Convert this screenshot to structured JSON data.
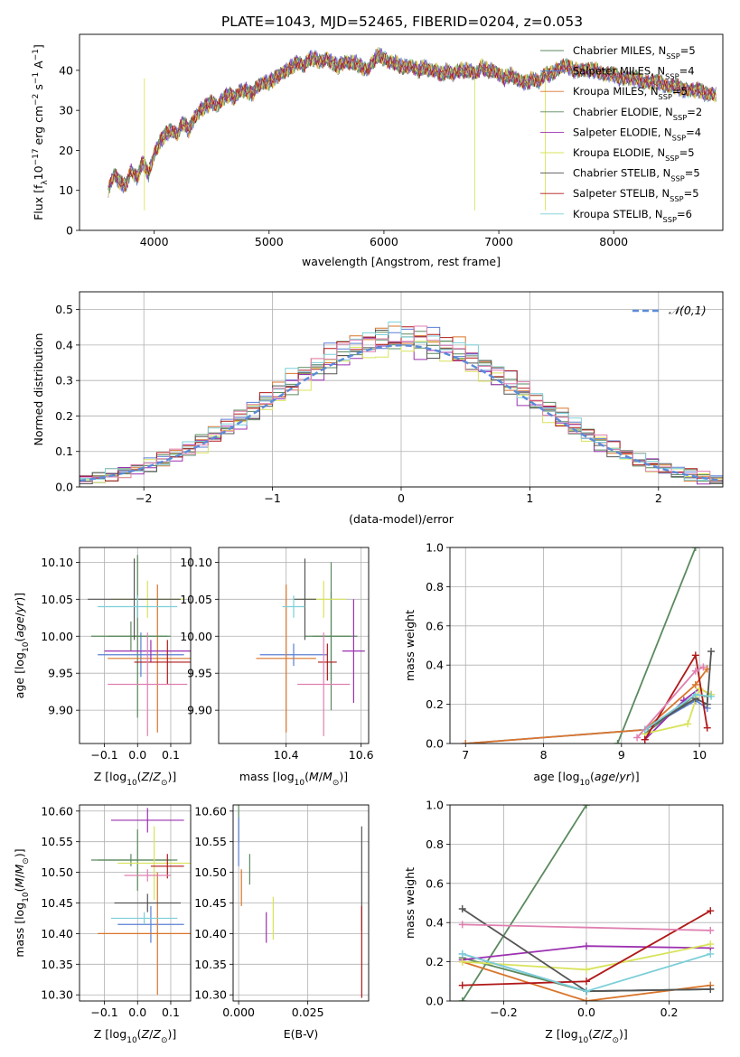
{
  "figure_title": "PLATE=1043, MJD=52465, FIBERID=0204, z=0.053",
  "colors": {
    "grid": "#b0b0b0",
    "series": [
      "#5b8a5f",
      "#5b7fd4",
      "#d9752b",
      "#5b8a5f",
      "#9b30b0",
      "#d8e35a",
      "#555555",
      "#b01818",
      "#7ccfd8",
      "#e07fb0"
    ]
  },
  "chart_data": [
    {
      "type": "line",
      "title": "PLATE=1043, MJD=52465, FIBERID=0204, z=0.053",
      "xlabel": "wavelength [Angstrom, rest frame]",
      "ylabel": "Flux [f_λ10^-17 erg cm^-2 s^-1 A^-1]",
      "xlim": [
        3350,
        8950
      ],
      "ylim": [
        0,
        49
      ],
      "xticks": [
        4000,
        5000,
        6000,
        7000,
        8000
      ],
      "yticks": [
        0,
        10,
        20,
        30,
        40
      ],
      "grid": false,
      "legend_position": "top-right",
      "spectrum_x": [
        3600,
        3650,
        3700,
        3750,
        3800,
        3850,
        3900,
        3950,
        4000,
        4050,
        4100,
        4150,
        4200,
        4250,
        4300,
        4350,
        4400,
        4450,
        4500,
        4550,
        4600,
        4650,
        4700,
        4750,
        4800,
        4850,
        4900,
        4950,
        5000,
        5050,
        5100,
        5150,
        5200,
        5250,
        5300,
        5350,
        5400,
        5450,
        5500,
        5550,
        5600,
        5650,
        5700,
        5750,
        5800,
        5850,
        5900,
        5950,
        6000,
        6050,
        6100,
        6150,
        6200,
        6250,
        6300,
        6350,
        6400,
        6450,
        6500,
        6550,
        6600,
        6650,
        6700,
        6750,
        6800,
        6850,
        6900,
        6950,
        7000,
        7050,
        7100,
        7150,
        7200,
        7250,
        7300,
        7350,
        7400,
        7450,
        7500,
        7550,
        7600,
        7650,
        7700,
        7750,
        7800,
        7850,
        7900,
        7950,
        8000,
        8050,
        8100,
        8150,
        8200,
        8250,
        8300,
        8350,
        8400,
        8450,
        8500,
        8550,
        8600,
        8650,
        8700,
        8750,
        8800,
        8850,
        8900
      ],
      "spectrum_y": [
        10,
        14,
        12,
        11,
        15,
        13,
        17,
        14,
        19,
        22,
        24,
        25,
        24,
        27,
        25,
        28,
        30,
        31,
        32,
        31,
        33,
        34,
        33,
        35,
        35,
        34,
        36,
        37,
        37,
        38,
        39,
        40,
        41,
        42,
        41,
        43,
        43,
        42,
        43,
        42,
        41,
        42,
        42,
        42,
        41,
        40,
        42,
        44,
        43,
        42,
        42,
        41,
        41,
        41,
        40,
        41,
        40,
        40,
        39,
        40,
        39,
        40,
        40,
        40,
        39,
        41,
        40,
        40,
        39,
        38,
        39,
        38,
        37,
        37,
        38,
        37,
        39,
        39,
        40,
        41,
        41,
        40,
        40,
        40,
        40,
        40,
        39,
        39,
        39,
        38,
        38,
        38,
        38,
        37,
        37,
        37,
        37,
        36,
        36,
        36,
        35,
        35,
        35,
        35,
        34,
        34,
        34
      ],
      "series": [
        {
          "name": "Chabrier MILES, N_SSP=5"
        },
        {
          "name": "Salpeter MILES, N_SSP=4"
        },
        {
          "name": "Kroupa MILES, N_SSP=5"
        },
        {
          "name": "Chabrier ELODIE, N_SSP=2"
        },
        {
          "name": "Salpeter ELODIE, N_SSP=4"
        },
        {
          "name": "Kroupa ELODIE, N_SSP=5"
        },
        {
          "name": "Chabrier STELIB, N_SSP=5"
        },
        {
          "name": "Salpeter STELIB, N_SSP=5"
        },
        {
          "name": "Kroupa STELIB, N_SSP=6"
        }
      ]
    },
    {
      "type": "line",
      "xlabel": "(data-model)/error",
      "ylabel": "Normed distribution",
      "xlim": [
        -2.5,
        2.5
      ],
      "ylim": [
        0,
        0.55
      ],
      "xticks": [
        -2,
        -1,
        0,
        1,
        2
      ],
      "yticks": [
        0.0,
        0.1,
        0.2,
        0.3,
        0.4,
        0.5
      ],
      "grid": true,
      "legend_position": "top-right",
      "reference_curve": {
        "name": "𝒩(0,1)",
        "mean": 0,
        "std": 1
      },
      "bin_width": 0.1,
      "bins_start": -2.5
    },
    {
      "type": "scatter",
      "xlabel": "Z [log10(Z/Z⊙)]",
      "ylabel": "age  [log10(age/yr)]",
      "xlim": [
        -0.175,
        0.16
      ],
      "ylim": [
        9.855,
        10.12
      ],
      "xticks": [
        -0.1,
        0.0,
        0.1
      ],
      "yticks": [
        9.9,
        9.95,
        10.0,
        10.05,
        10.1
      ],
      "grid": true,
      "points": [
        {
          "x": 0.0,
          "y": 10.0,
          "xerr": 0.09,
          "yerr": 0.11
        },
        {
          "x": 0.01,
          "y": 9.975,
          "xerr": 0.13,
          "yerr": 0.03
        },
        {
          "x": 0.06,
          "y": 9.97,
          "xerr": 0.15,
          "yerr": 0.1
        },
        {
          "x": -0.02,
          "y": 10.0,
          "xerr": 0.12,
          "yerr": 0.02
        },
        {
          "x": 0.04,
          "y": 9.98,
          "xerr": 0.14,
          "yerr": 0.015
        },
        {
          "x": 0.03,
          "y": 10.05,
          "xerr": 0.11,
          "yerr": 0.025
        },
        {
          "x": -0.01,
          "y": 10.05,
          "xerr": 0.14,
          "yerr": 0.055
        },
        {
          "x": 0.09,
          "y": 9.965,
          "xerr": 0.1,
          "yerr": 0.03
        },
        {
          "x": 0.0,
          "y": 10.04,
          "xerr": 0.12,
          "yerr": 0.015
        },
        {
          "x": 0.03,
          "y": 9.935,
          "xerr": 0.12,
          "yerr": 0.07
        }
      ]
    },
    {
      "type": "scatter",
      "xlabel": "mass [log10(M/M⊙)]",
      "ylabel": "",
      "xlim": [
        10.22,
        10.62
      ],
      "ylim": [
        9.855,
        10.12
      ],
      "xticks": [
        10.4,
        10.6
      ],
      "yticks": [
        9.9,
        9.95,
        10.0,
        10.05,
        10.1
      ],
      "grid": true,
      "points": [
        {
          "x": 10.52,
          "y": 10.0,
          "xerr": 0.07,
          "yerr": 0.1
        },
        {
          "x": 10.42,
          "y": 9.975,
          "xerr": 0.09,
          "yerr": 0.015
        },
        {
          "x": 10.4,
          "y": 9.97,
          "xerr": 0.08,
          "yerr": 0.1
        },
        {
          "x": 10.52,
          "y": 10.0,
          "xerr": 0.05,
          "yerr": 0.06
        },
        {
          "x": 10.58,
          "y": 9.98,
          "xerr": 0.03,
          "yerr": 0.07
        },
        {
          "x": 10.5,
          "y": 10.05,
          "xerr": 0.06,
          "yerr": 0.025
        },
        {
          "x": 10.45,
          "y": 10.05,
          "xerr": 0.03,
          "yerr": 0.055
        },
        {
          "x": 10.51,
          "y": 9.965,
          "xerr": 0.025,
          "yerr": 0.025
        },
        {
          "x": 10.42,
          "y": 10.04,
          "xerr": 0.03,
          "yerr": 0.015
        },
        {
          "x": 10.5,
          "y": 9.935,
          "xerr": 0.07,
          "yerr": 0.07
        }
      ]
    },
    {
      "type": "line",
      "xlabel": "age  [log10(age/yr)]",
      "ylabel": "mass weight",
      "xlim": [
        6.8,
        10.3
      ],
      "ylim": [
        0,
        1
      ],
      "xticks": [
        7,
        8,
        9,
        10
      ],
      "yticks": [
        0.0,
        0.2,
        0.4,
        0.6,
        0.8,
        1.0
      ],
      "grid": true,
      "series": [
        {
          "x": [
            8.95,
            9.95
          ],
          "y": [
            0.0,
            1.0
          ]
        },
        {
          "x": [
            7.0,
            9.3,
            9.95,
            10.1
          ],
          "y": [
            0.0,
            0.07,
            0.22,
            0.18
          ]
        },
        {
          "x": [
            7.0,
            9.3,
            9.95,
            10.1
          ],
          "y": [
            0.0,
            0.07,
            0.3,
            0.38
          ]
        },
        {
          "x": [
            9.3,
            9.8,
            9.95,
            10.1
          ],
          "y": [
            0.05,
            0.2,
            0.25,
            0.24
          ]
        },
        {
          "x": [
            9.3,
            9.8,
            10.0,
            10.15
          ],
          "y": [
            0.02,
            0.22,
            0.28,
            0.25
          ]
        },
        {
          "x": [
            9.3,
            9.85,
            10.0,
            10.15
          ],
          "y": [
            0.05,
            0.1,
            0.28,
            0.25
          ]
        },
        {
          "x": [
            9.3,
            9.95,
            10.1,
            10.15
          ],
          "y": [
            0.07,
            0.23,
            0.2,
            0.47
          ]
        },
        {
          "x": [
            9.3,
            9.95,
            10.1
          ],
          "y": [
            0.02,
            0.45,
            0.08
          ]
        },
        {
          "x": [
            9.3,
            9.95,
            10.15
          ],
          "y": [
            0.07,
            0.25,
            0.24
          ]
        },
        {
          "x": [
            9.2,
            9.95,
            10.05
          ],
          "y": [
            0.03,
            0.37,
            0.39
          ]
        }
      ]
    },
    {
      "type": "scatter",
      "xlabel": "Z [log10(Z/Z⊙)]",
      "ylabel": "mass [log10(M/M⊙)]",
      "xlim": [
        -0.175,
        0.16
      ],
      "ylim": [
        10.29,
        10.61
      ],
      "xticks": [
        -0.1,
        0.0,
        0.1
      ],
      "yticks": [
        10.3,
        10.35,
        10.4,
        10.45,
        10.5,
        10.55,
        10.6
      ],
      "grid": true,
      "points": [
        {
          "x": 0.0,
          "y": 10.52,
          "xerr": 0.12,
          "yerr": 0.05
        },
        {
          "x": 0.04,
          "y": 10.415,
          "xerr": 0.1,
          "yerr": 0.03
        },
        {
          "x": 0.06,
          "y": 10.4,
          "xerr": 0.18,
          "yerr": 0.1
        },
        {
          "x": -0.02,
          "y": 10.52,
          "xerr": 0.12,
          "yerr": 0.01
        },
        {
          "x": 0.03,
          "y": 10.585,
          "xerr": 0.11,
          "yerr": 0.02
        },
        {
          "x": 0.05,
          "y": 10.515,
          "xerr": 0.11,
          "yerr": 0.06
        },
        {
          "x": 0.03,
          "y": 10.45,
          "xerr": 0.1,
          "yerr": 0.015
        },
        {
          "x": 0.09,
          "y": 10.51,
          "xerr": 0.05,
          "yerr": 0.02
        },
        {
          "x": 0.02,
          "y": 10.425,
          "xerr": 0.1,
          "yerr": 0.01
        },
        {
          "x": 0.03,
          "y": 10.495,
          "xerr": 0.07,
          "yerr": 0.01
        }
      ]
    },
    {
      "type": "scatter",
      "xlabel": "E(B-V)",
      "ylabel": "",
      "xlim": [
        -0.002,
        0.047
      ],
      "ylim": [
        10.29,
        10.61
      ],
      "xticks": [
        0.0,
        0.025
      ],
      "yticks": [
        10.3,
        10.35,
        10.4,
        10.45,
        10.5,
        10.55,
        10.6
      ],
      "grid": true,
      "points": [
        {
          "x": 0.0,
          "y": 10.58,
          "yerr": 0.03
        },
        {
          "x": 0.0,
          "y": 10.55,
          "yerr": 0.04
        },
        {
          "x": 0.001,
          "y": 10.475,
          "yerr": 0.03
        },
        {
          "x": 0.004,
          "y": 10.505,
          "yerr": 0.025
        },
        {
          "x": 0.01,
          "y": 10.41,
          "yerr": 0.025
        },
        {
          "x": 0.0125,
          "y": 10.425,
          "yerr": 0.035
        },
        {
          "x": 0.0445,
          "y": 10.49,
          "yerr": 0.085
        },
        {
          "x": 0.0445,
          "y": 10.37,
          "yerr": 0.075
        }
      ]
    },
    {
      "type": "line",
      "xlabel": "Z [log10(Z/Z⊙)]",
      "ylabel": "mass weight",
      "xlim": [
        -0.33,
        0.33
      ],
      "ylim": [
        0,
        1
      ],
      "xticks": [
        -0.2,
        0.0,
        0.2
      ],
      "yticks": [
        0.0,
        0.2,
        0.4,
        0.6,
        0.8,
        1.0
      ],
      "grid": true,
      "series": [
        {
          "x": [
            -0.3,
            0.0
          ],
          "y": [
            0.0,
            1.0
          ]
        },
        {
          "x": [
            -0.3,
            0.0,
            0.3
          ],
          "y": [
            0.24,
            0.05,
            0.06
          ]
        },
        {
          "x": [
            -0.3,
            0.0,
            0.3
          ],
          "y": [
            0.2,
            0.0,
            0.08
          ]
        },
        {
          "x": [
            -0.3,
            0.0,
            0.3
          ],
          "y": [
            0.22,
            0.05,
            0.06
          ]
        },
        {
          "x": [
            -0.3,
            0.0,
            0.3
          ],
          "y": [
            0.21,
            0.28,
            0.27
          ]
        },
        {
          "x": [
            -0.3,
            0.0,
            0.3
          ],
          "y": [
            0.2,
            0.16,
            0.29
          ]
        },
        {
          "x": [
            -0.3,
            0.0,
            0.3
          ],
          "y": [
            0.47,
            0.05,
            0.06
          ]
        },
        {
          "x": [
            -0.3,
            0.0,
            0.3
          ],
          "y": [
            0.08,
            0.1,
            0.46
          ]
        },
        {
          "x": [
            -0.3,
            0.0,
            0.3
          ],
          "y": [
            0.24,
            0.05,
            0.24
          ]
        },
        {
          "x": [
            -0.3,
            0.3
          ],
          "y": [
            0.39,
            0.36
          ]
        }
      ]
    }
  ]
}
